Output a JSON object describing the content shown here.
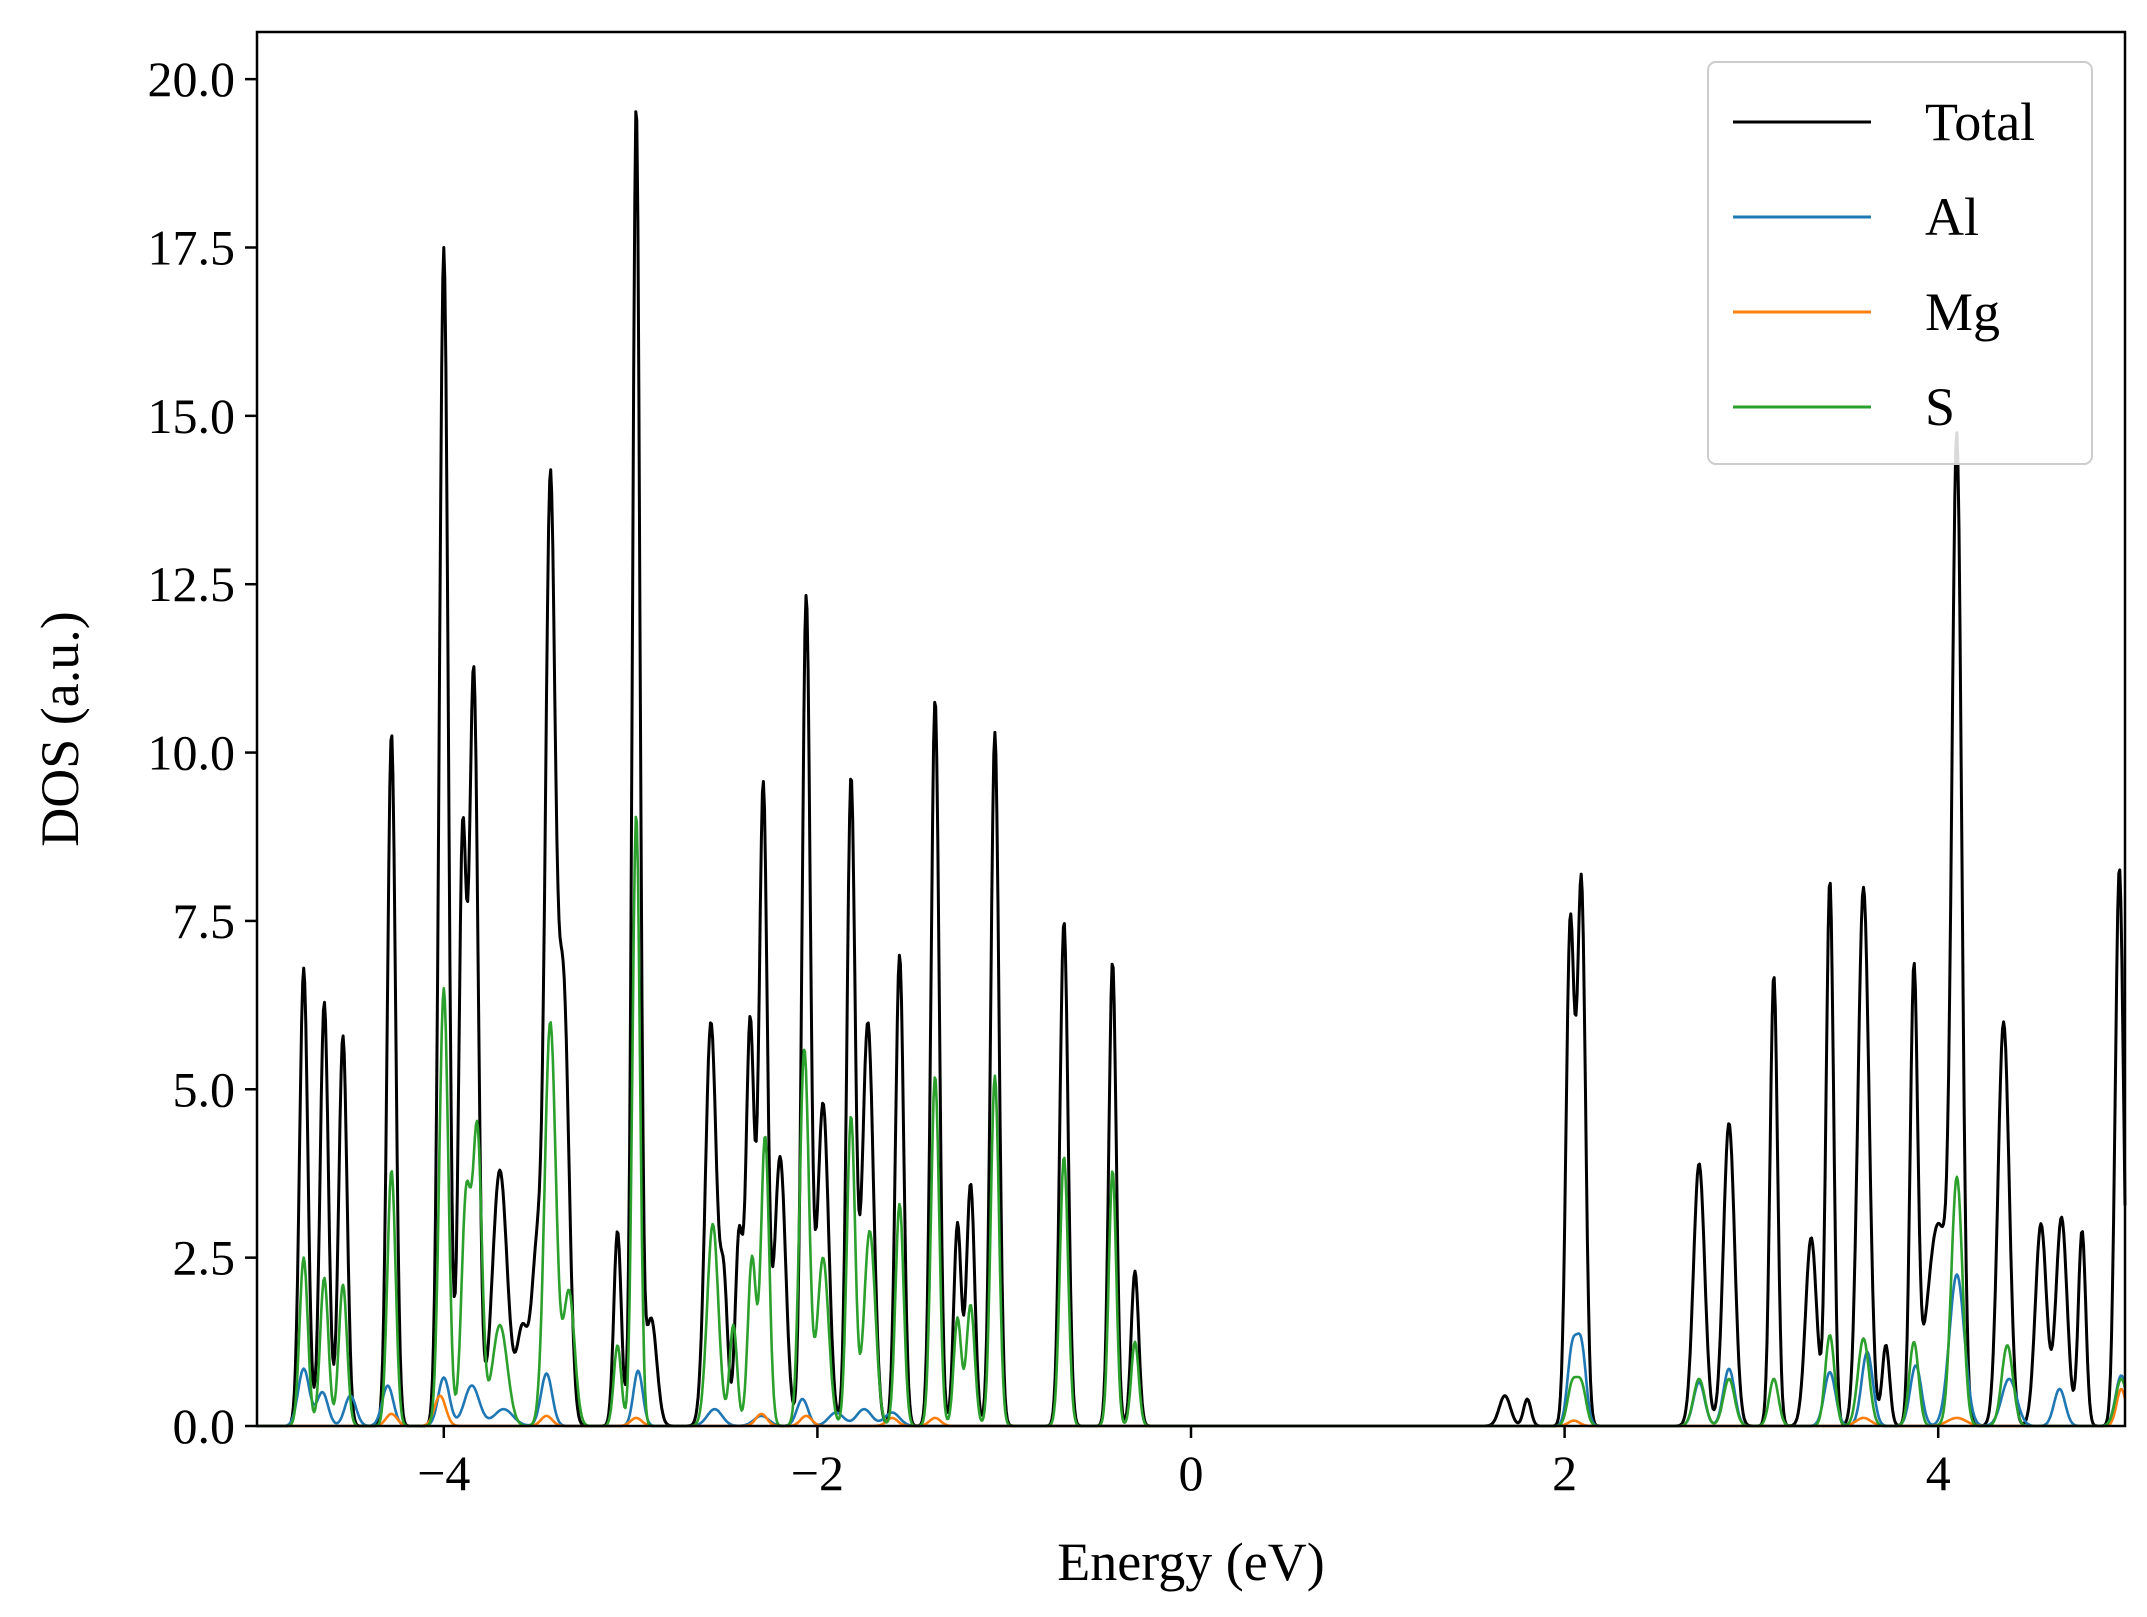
{
  "chart_data": {
    "type": "line",
    "title": "",
    "xlabel": "Energy (eV)",
    "ylabel": "DOS (a.u.)",
    "xlim": [
      -5,
      5
    ],
    "ylim": [
      0,
      20.7
    ],
    "xticks": [
      -4,
      -2,
      0,
      2,
      4
    ],
    "xtick_labels": [
      "−4",
      "−2",
      "0",
      "2",
      "4"
    ],
    "yticks": [
      0,
      2.5,
      5,
      7.5,
      10,
      12.5,
      15,
      17.5,
      20
    ],
    "ytick_labels": [
      "0.0",
      "2.5",
      "5.0",
      "7.5",
      "10.0",
      "12.5",
      "15.0",
      "17.5",
      "20.0"
    ],
    "grid": false,
    "legend_position": "top-right",
    "series": [
      {
        "name": "Total",
        "color": "#000000",
        "peaks": [
          [
            -4.75,
            6.8,
            0.022
          ],
          [
            -4.64,
            6.3,
            0.022
          ],
          [
            -4.54,
            5.8,
            0.022
          ],
          [
            -4.28,
            10.3,
            0.022
          ],
          [
            -4.0,
            17.5,
            0.024
          ],
          [
            -3.9,
            8.5,
            0.02
          ],
          [
            -3.84,
            11.2,
            0.024
          ],
          [
            -3.7,
            3.8,
            0.04
          ],
          [
            -3.58,
            1.4,
            0.03
          ],
          [
            -3.5,
            2.6,
            0.03
          ],
          [
            -3.43,
            13.6,
            0.026
          ],
          [
            -3.36,
            6.5,
            0.03
          ],
          [
            -3.07,
            2.9,
            0.02
          ],
          [
            -2.97,
            19.6,
            0.02
          ],
          [
            -2.89,
            1.6,
            0.03
          ],
          [
            -2.57,
            6.0,
            0.03
          ],
          [
            -2.5,
            2.0,
            0.02
          ],
          [
            -2.42,
            2.8,
            0.02
          ],
          [
            -2.36,
            6.0,
            0.022
          ],
          [
            -2.29,
            9.5,
            0.022
          ],
          [
            -2.2,
            4.0,
            0.03
          ],
          [
            -2.06,
            12.3,
            0.022
          ],
          [
            -1.97,
            4.8,
            0.03
          ],
          [
            -1.82,
            9.6,
            0.022
          ],
          [
            -1.73,
            6.0,
            0.03
          ],
          [
            -1.56,
            7.0,
            0.022
          ],
          [
            -1.37,
            10.8,
            0.022
          ],
          [
            -1.25,
            3.0,
            0.02
          ],
          [
            -1.18,
            3.6,
            0.022
          ],
          [
            -1.05,
            10.3,
            0.022
          ],
          [
            -0.68,
            7.5,
            0.022
          ],
          [
            -0.42,
            6.9,
            0.02
          ],
          [
            -0.3,
            2.3,
            0.02
          ],
          [
            1.68,
            0.45,
            0.03
          ],
          [
            1.8,
            0.4,
            0.02
          ],
          [
            2.03,
            7.4,
            0.022
          ],
          [
            2.09,
            8.0,
            0.022
          ],
          [
            2.72,
            3.9,
            0.03
          ],
          [
            2.88,
            4.5,
            0.03
          ],
          [
            3.12,
            6.7,
            0.02
          ],
          [
            3.32,
            2.8,
            0.03
          ],
          [
            3.42,
            8.1,
            0.02
          ],
          [
            3.6,
            8.0,
            0.03
          ],
          [
            3.72,
            1.2,
            0.02
          ],
          [
            3.87,
            6.6,
            0.02
          ],
          [
            4.0,
            3.0,
            0.06
          ],
          [
            4.1,
            14.0,
            0.026
          ],
          [
            4.35,
            6.0,
            0.03
          ],
          [
            4.55,
            3.0,
            0.03
          ],
          [
            4.66,
            3.1,
            0.03
          ],
          [
            4.77,
            2.9,
            0.02
          ],
          [
            4.97,
            8.3,
            0.022
          ]
        ]
      },
      {
        "name": "Al",
        "color": "#1f77b4",
        "peaks": [
          [
            -4.75,
            0.85,
            0.03
          ],
          [
            -4.65,
            0.5,
            0.03
          ],
          [
            -4.5,
            0.45,
            0.03
          ],
          [
            -4.3,
            0.6,
            0.03
          ],
          [
            -4.0,
            0.72,
            0.03
          ],
          [
            -3.85,
            0.6,
            0.04
          ],
          [
            -3.68,
            0.25,
            0.05
          ],
          [
            -3.45,
            0.78,
            0.03
          ],
          [
            -2.96,
            0.82,
            0.025
          ],
          [
            -2.55,
            0.25,
            0.04
          ],
          [
            -2.3,
            0.15,
            0.04
          ],
          [
            -2.08,
            0.4,
            0.03
          ],
          [
            -1.9,
            0.2,
            0.04
          ],
          [
            -1.75,
            0.25,
            0.04
          ],
          [
            -1.6,
            0.2,
            0.04
          ],
          [
            2.04,
            1.1,
            0.025
          ],
          [
            2.09,
            1.15,
            0.025
          ],
          [
            2.72,
            0.65,
            0.03
          ],
          [
            2.88,
            0.85,
            0.03
          ],
          [
            3.42,
            0.8,
            0.03
          ],
          [
            3.62,
            1.1,
            0.03
          ],
          [
            3.88,
            0.9,
            0.03
          ],
          [
            4.1,
            2.25,
            0.04
          ],
          [
            4.38,
            0.7,
            0.04
          ],
          [
            4.65,
            0.55,
            0.03
          ],
          [
            4.98,
            0.75,
            0.03
          ]
        ]
      },
      {
        "name": "Mg",
        "color": "#ff7f0e",
        "peaks": [
          [
            -4.28,
            0.18,
            0.03
          ],
          [
            -4.02,
            0.45,
            0.03
          ],
          [
            -3.45,
            0.15,
            0.03
          ],
          [
            -2.97,
            0.12,
            0.03
          ],
          [
            -2.3,
            0.18,
            0.03
          ],
          [
            -2.06,
            0.15,
            0.03
          ],
          [
            -1.6,
            0.12,
            0.03
          ],
          [
            -1.37,
            0.12,
            0.03
          ],
          [
            2.05,
            0.08,
            0.03
          ],
          [
            3.6,
            0.12,
            0.04
          ],
          [
            4.1,
            0.12,
            0.05
          ],
          [
            4.98,
            0.55,
            0.025
          ]
        ]
      },
      {
        "name": "S",
        "color": "#2ca02c",
        "peaks": [
          [
            -4.75,
            2.5,
            0.022
          ],
          [
            -4.64,
            2.2,
            0.022
          ],
          [
            -4.54,
            2.1,
            0.022
          ],
          [
            -4.28,
            3.8,
            0.022
          ],
          [
            -4.0,
            6.5,
            0.024
          ],
          [
            -3.88,
            3.4,
            0.025
          ],
          [
            -3.82,
            4.3,
            0.024
          ],
          [
            -3.7,
            1.5,
            0.04
          ],
          [
            -3.43,
            6.0,
            0.03
          ],
          [
            -3.33,
            2.0,
            0.03
          ],
          [
            -3.07,
            1.2,
            0.02
          ],
          [
            -2.97,
            9.1,
            0.02
          ],
          [
            -2.56,
            3.0,
            0.03
          ],
          [
            -2.45,
            1.5,
            0.02
          ],
          [
            -2.35,
            2.5,
            0.022
          ],
          [
            -2.28,
            4.3,
            0.022
          ],
          [
            -2.07,
            5.6,
            0.025
          ],
          [
            -1.97,
            2.5,
            0.03
          ],
          [
            -1.82,
            4.6,
            0.022
          ],
          [
            -1.72,
            2.9,
            0.03
          ],
          [
            -1.56,
            3.3,
            0.022
          ],
          [
            -1.37,
            5.2,
            0.022
          ],
          [
            -1.25,
            1.6,
            0.02
          ],
          [
            -1.18,
            1.8,
            0.022
          ],
          [
            -1.05,
            5.2,
            0.022
          ],
          [
            -0.68,
            4.0,
            0.022
          ],
          [
            -0.42,
            3.8,
            0.02
          ],
          [
            -0.3,
            1.25,
            0.02
          ],
          [
            2.04,
            0.6,
            0.025
          ],
          [
            2.09,
            0.6,
            0.025
          ],
          [
            2.72,
            0.7,
            0.03
          ],
          [
            2.88,
            0.7,
            0.03
          ],
          [
            3.12,
            0.7,
            0.025
          ],
          [
            3.42,
            1.35,
            0.025
          ],
          [
            3.6,
            1.3,
            0.03
          ],
          [
            3.87,
            1.25,
            0.025
          ],
          [
            4.1,
            3.7,
            0.03
          ],
          [
            4.37,
            1.2,
            0.03
          ],
          [
            4.98,
            0.7,
            0.03
          ]
        ]
      }
    ]
  }
}
